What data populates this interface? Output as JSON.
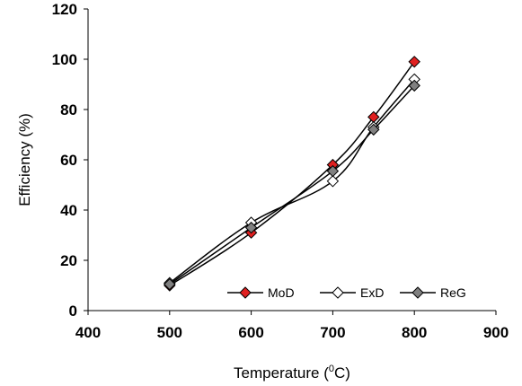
{
  "chart_data": {
    "type": "line",
    "title": "",
    "xlabel": "Temperature (",
    "xlabel_sup": "0",
    "xlabel_suffix": "C)",
    "ylabel": "Efficiency  (%)",
    "xlim": [
      400,
      900
    ],
    "ylim": [
      0,
      120
    ],
    "xticks": [
      400,
      500,
      600,
      700,
      800,
      900
    ],
    "yticks": [
      0,
      20,
      40,
      60,
      80,
      100,
      120
    ],
    "grid": false,
    "legend_position": "bottom-right",
    "x": [
      500,
      600,
      700,
      750,
      800
    ],
    "series": [
      {
        "name": "MoD",
        "values": [
          10,
          31,
          58,
          77,
          99
        ],
        "marker_fill": "#e02020",
        "line_color": "#000000"
      },
      {
        "name": "ExD",
        "values": [
          11,
          35,
          51.5,
          73,
          92
        ],
        "marker_fill": "#ffffff",
        "line_color": "#000000"
      },
      {
        "name": "ReG",
        "values": [
          10.5,
          33,
          55.5,
          72,
          89.5
        ],
        "marker_fill": "#808080",
        "line_color": "#000000"
      }
    ]
  }
}
